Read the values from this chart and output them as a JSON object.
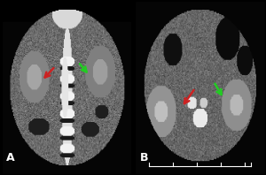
{
  "background_color": "#000000",
  "label_color": "#ffffff",
  "label_fontsize": 9,
  "red_color": "#cc2222",
  "green_color": "#22cc22",
  "arrow_lw": 1.8,
  "arrow_mutation_scale": 10
}
